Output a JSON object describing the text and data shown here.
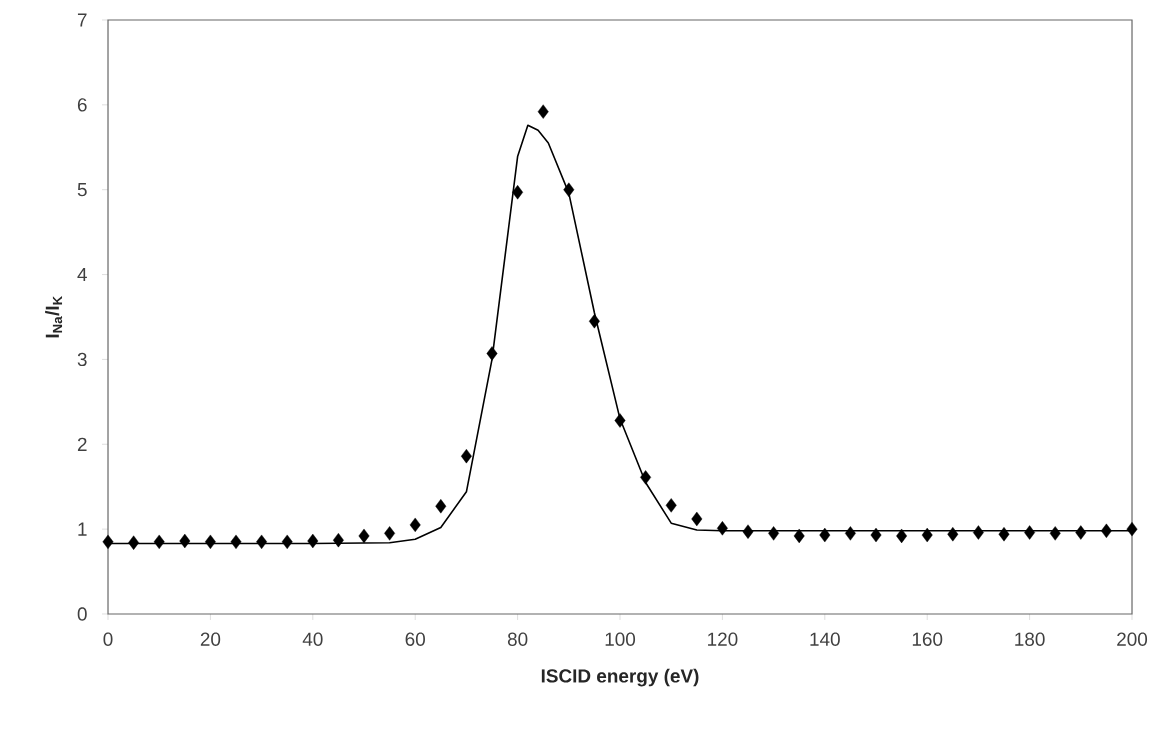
{
  "chart_data": {
    "type": "scatter",
    "xlabel": "ISCID energy (eV)",
    "ylabel": "I$_{Na}$/I$_{K}$",
    "xlim": [
      0,
      200
    ],
    "ylim": [
      0,
      7
    ],
    "xticks": [
      0,
      20,
      40,
      60,
      80,
      100,
      120,
      140,
      160,
      180,
      200
    ],
    "yticks": [
      0,
      1,
      2,
      3,
      4,
      5,
      6,
      7
    ],
    "grid": false,
    "series": [
      {
        "marker": "diamond",
        "color": "#000000",
        "x": [
          0,
          5,
          10,
          15,
          20,
          25,
          30,
          35,
          40,
          45,
          50,
          55,
          60,
          65,
          70,
          75,
          80,
          85,
          90,
          95,
          100,
          105,
          110,
          115,
          120,
          125,
          130,
          135,
          140,
          145,
          150,
          155,
          160,
          165,
          170,
          175,
          180,
          185,
          190,
          195,
          200
        ],
        "values": [
          0.85,
          0.84,
          0.85,
          0.86,
          0.85,
          0.85,
          0.85,
          0.85,
          0.86,
          0.87,
          0.92,
          0.95,
          1.05,
          1.27,
          1.86,
          3.07,
          4.97,
          5.92,
          5.0,
          3.45,
          2.28,
          1.61,
          1.28,
          1.12,
          1.01,
          0.97,
          0.95,
          0.92,
          0.93,
          0.95,
          0.93,
          0.92,
          0.93,
          0.94,
          0.96,
          0.94,
          0.96,
          0.95,
          0.96,
          0.98,
          1.0
        ]
      },
      {
        "type": "line",
        "marker": "none",
        "line_style": "solid",
        "color": "#000000",
        "x": [
          0,
          20,
          40,
          55,
          60,
          65,
          70,
          75,
          80,
          82,
          84,
          86,
          90,
          95,
          100,
          105,
          110,
          115,
          120,
          140,
          160,
          180,
          200
        ],
        "values": [
          0.83,
          0.83,
          0.83,
          0.84,
          0.88,
          1.02,
          1.44,
          3.0,
          5.39,
          5.76,
          5.7,
          5.55,
          4.96,
          3.55,
          2.3,
          1.55,
          1.07,
          0.99,
          0.98,
          0.98,
          0.98,
          0.98,
          0.98
        ]
      }
    ]
  }
}
